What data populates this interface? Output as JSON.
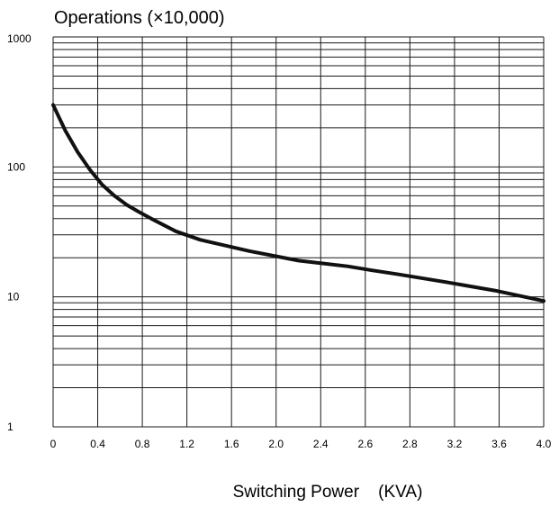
{
  "chart_data": {
    "type": "line",
    "title": "",
    "ylabel": "Operations (×10,000)",
    "xlabel": "Switching Power    (KVA)",
    "yscale": "log",
    "ylim": [
      1,
      1000
    ],
    "xlim": [
      0,
      4.0
    ],
    "y_ticks": [
      1,
      10,
      100,
      1000
    ],
    "y_tick_labels": [
      "1",
      "10",
      "100",
      "1000"
    ],
    "x_tick_labels": [
      "0",
      "0.4",
      "0.8",
      "1.2",
      "1.6",
      "2.0",
      "2.4",
      "2.6",
      "2.8",
      "3.2",
      "3.6",
      "4.0"
    ],
    "grid": true,
    "series": [
      {
        "color": "#111111",
        "x": [
          0,
          0.1,
          0.2,
          0.3,
          0.4,
          0.5,
          0.6,
          0.7,
          0.8,
          1.0,
          1.2,
          1.6,
          2.0,
          2.4,
          2.6,
          2.8,
          3.2,
          3.6,
          4.0
        ],
        "y": [
          300,
          190,
          130,
          95,
          73,
          60,
          51,
          45,
          40,
          32,
          27.5,
          22.5,
          19,
          17.2,
          16,
          15,
          13,
          11.2,
          9.3
        ]
      }
    ]
  }
}
